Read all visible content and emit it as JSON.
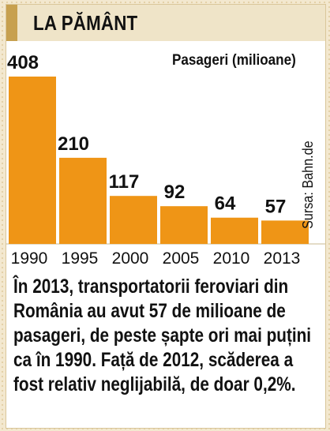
{
  "title": "LA PĂMÂNT",
  "source": "Sursa: Bahn.de",
  "body_text": "În 2013, transportatorii feroviari din România au avut 57 de milioane de pasageri, de peste șapte ori mai puțini ca în 1990. Față de 2012, scăderea a fost relativ neglijabilă, de doar 0,2%.",
  "colors": {
    "bar": "#ef9516",
    "title_band": "#efe4c8",
    "accent": "#c7a04f"
  },
  "chart_data": {
    "type": "bar",
    "categories": [
      "1990",
      "1995",
      "2000",
      "2005",
      "2010",
      "2013"
    ],
    "values": [
      408,
      210,
      117,
      92,
      64,
      57
    ],
    "title": "",
    "xlabel": "",
    "ylabel": "Pasageri (milioane)",
    "ylim": [
      0,
      408
    ],
    "grid": false,
    "data_labels": true
  }
}
